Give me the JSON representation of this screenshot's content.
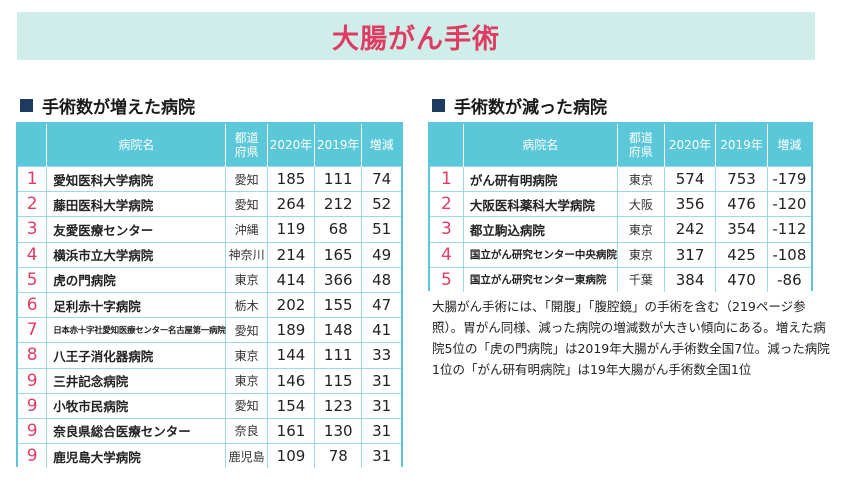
{
  "title": "大腸がん手術",
  "increased": {
    "heading": "手術数が増えた病院",
    "headers": {
      "name": "病院名",
      "pref": "都道\n府県",
      "y2020": "2020年",
      "y2019": "2019年",
      "change": "増減"
    },
    "rows": [
      {
        "rank": "1",
        "name": "愛知医科大学病院",
        "pref": "愛知",
        "y2020": "185",
        "y2019": "111",
        "change": "74"
      },
      {
        "rank": "2",
        "name": "藤田医科大学病院",
        "pref": "愛知",
        "y2020": "264",
        "y2019": "212",
        "change": "52"
      },
      {
        "rank": "3",
        "name": "友愛医療センター",
        "pref": "沖縄",
        "y2020": "119",
        "y2019": "68",
        "change": "51"
      },
      {
        "rank": "4",
        "name": "横浜市立大学病院",
        "pref": "神奈川",
        "y2020": "214",
        "y2019": "165",
        "change": "49"
      },
      {
        "rank": "5",
        "name": "虎の門病院",
        "pref": "東京",
        "y2020": "414",
        "y2019": "366",
        "change": "48"
      },
      {
        "rank": "6",
        "name": "足利赤十字病院",
        "pref": "栃木",
        "y2020": "202",
        "y2019": "155",
        "change": "47"
      },
      {
        "rank": "7",
        "name": "日本赤十字社愛知医療センター名古屋第一病院",
        "pref": "愛知",
        "y2020": "189",
        "y2019": "148",
        "change": "41"
      },
      {
        "rank": "8",
        "name": "八王子消化器病院",
        "pref": "東京",
        "y2020": "144",
        "y2019": "111",
        "change": "33"
      },
      {
        "rank": "9",
        "name": "三井記念病院",
        "pref": "東京",
        "y2020": "146",
        "y2019": "115",
        "change": "31"
      },
      {
        "rank": "9",
        "name": "小牧市民病院",
        "pref": "愛知",
        "y2020": "154",
        "y2019": "123",
        "change": "31"
      },
      {
        "rank": "9",
        "name": "奈良県総合医療センター",
        "pref": "奈良",
        "y2020": "161",
        "y2019": "130",
        "change": "31"
      },
      {
        "rank": "9",
        "name": "鹿児島大学病院",
        "pref": "鹿児島",
        "y2020": "109",
        "y2019": "78",
        "change": "31"
      }
    ]
  },
  "decreased": {
    "heading": "手術数が減った病院",
    "headers": {
      "name": "病院名",
      "pref": "都道\n府県",
      "y2020": "2020年",
      "y2019": "2019年",
      "change": "増減"
    },
    "rows": [
      {
        "rank": "1",
        "name": "がん研有明病院",
        "pref": "東京",
        "y2020": "574",
        "y2019": "753",
        "change": "-179"
      },
      {
        "rank": "2",
        "name": "大阪医科薬科大学病院",
        "pref": "大阪",
        "y2020": "356",
        "y2019": "476",
        "change": "-120"
      },
      {
        "rank": "3",
        "name": "都立駒込病院",
        "pref": "東京",
        "y2020": "242",
        "y2019": "354",
        "change": "-112"
      },
      {
        "rank": "4",
        "name": "国立がん研究センター中央病院",
        "pref": "東京",
        "y2020": "317",
        "y2019": "425",
        "change": "-108"
      },
      {
        "rank": "5",
        "name": "国立がん研究センター東病院",
        "pref": "千葉",
        "y2020": "384",
        "y2019": "470",
        "change": "-86"
      }
    ]
  },
  "note": "大腸がん手術には、「開腹」「腹腔鏡」の手術を含む（219ページ参照）。胃がん同様、減った病院の増減数が大きい傾向にある。増えた病院5位の「虎の門病院」は2019年大腸がん手術数全国7位。減った病院1位の「がん研有明病院」は19年大腸がん手術数全国1位"
}
